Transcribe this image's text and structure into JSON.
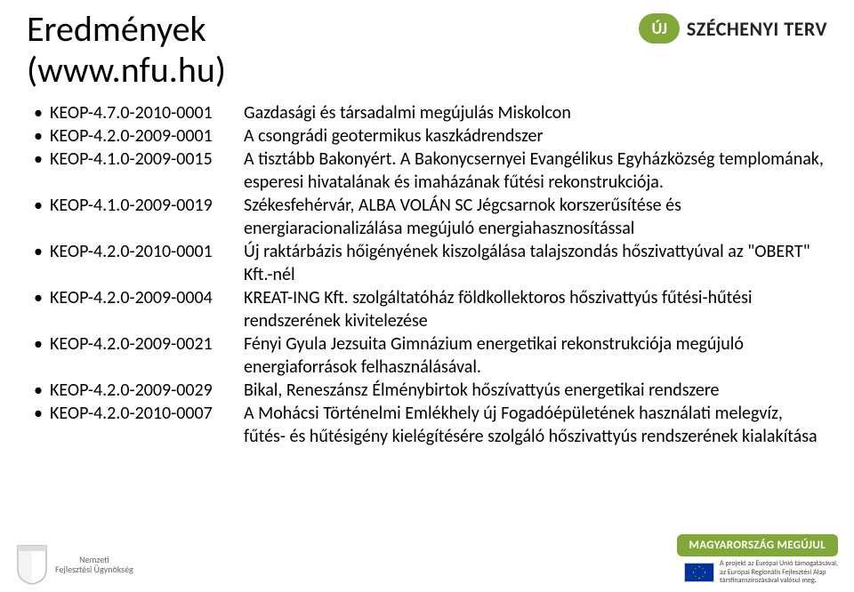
{
  "title_line1": "Eredmények",
  "title_line2": "(www.nfu.hu)",
  "logo": {
    "uj": "ÚJ",
    "szechenyi": "SZÉCHENYI TERV"
  },
  "items": [
    {
      "code": "KEOP-4.7.0-2010-0001",
      "desc": "Gazdasági és társadalmi megújulás Miskolcon"
    },
    {
      "code": "KEOP-4.2.0-2009-0001",
      "desc": "A csongrádi geotermikus kaszkádrendszer"
    },
    {
      "code": "KEOP-4.1.0-2009-0015",
      "desc": "A tisztább Bakonyért. A Bakonycsernyei Evangélikus Egyházközség templomának, esperesi hivatalának és imaházának fűtési rekonstrukciója."
    },
    {
      "code": "KEOP-4.1.0-2009-0019",
      "desc": "Székesfehérvár, ALBA VOLÁN SC Jégcsarnok korszerűsítése és energiaracionalizálása megújuló energiahasznosítással"
    },
    {
      "code": "KEOP-4.2.0-2010-0001",
      "desc": "Új raktárbázis hőigényének kiszolgálása talajszondás hőszivattyúval az \"OBERT\" Kft.-nél"
    },
    {
      "code": "KEOP-4.2.0-2009-0004",
      "desc": "KREAT-ING Kft. szolgáltatóház földkollektoros hőszivattyús fűtési-hűtési rendszerének kivitelezése"
    },
    {
      "code": "KEOP-4.2.0-2009-0021",
      "desc": "Fényi Gyula Jezsuita Gimnázium energetikai rekonstrukciója megújuló energiaforrások felhasználásával."
    },
    {
      "code": "KEOP-4.2.0-2009-0029",
      "desc": "Bikal, Reneszánsz Élménybirtok hőszívattyús energetikai rendszere"
    },
    {
      "code": "KEOP-4.2.0-2010-0007",
      "desc": "A Mohácsi Történelmi Emlékhely új Fogadóépületének használati melegvíz, fűtés- és hűtésigény kielégítésére szolgáló hőszivattyús rendszerének kialakítása"
    }
  ],
  "footer": {
    "nfu_line1": "Nemzeti",
    "nfu_line2": "Fejlesztési Ügynökség",
    "megujul": "MAGYARORSZÁG MEGÚJUL",
    "eu_line1": "A projekt az Európai Unió támogatásával,",
    "eu_line2": "az Európai Regionális Fejlesztési Alap",
    "eu_line3": "társfinanszírozásával valósul meg."
  }
}
